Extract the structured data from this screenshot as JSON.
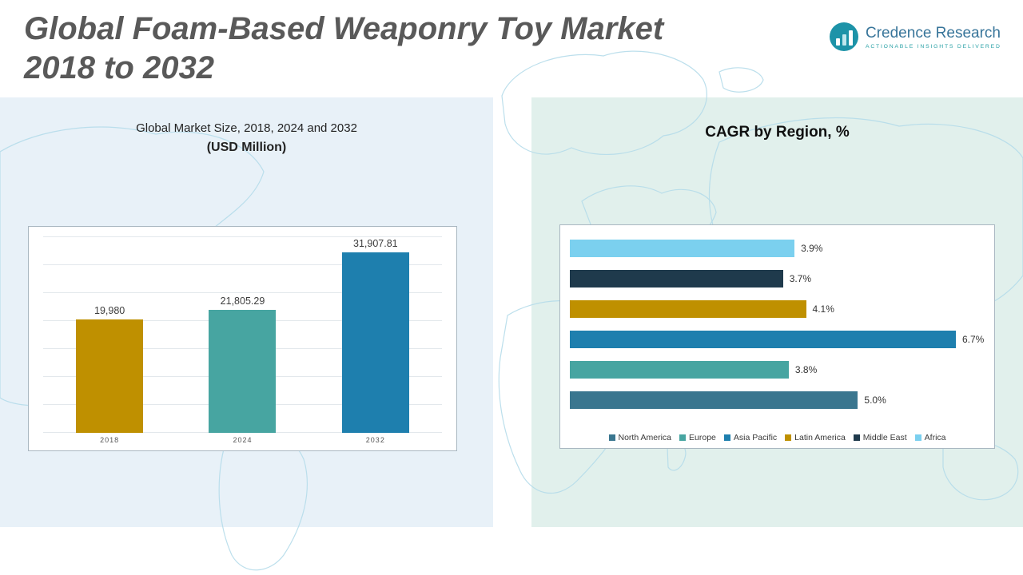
{
  "header": {
    "title_line1": "Global Foam-Based Weaponry Toy Market",
    "title_line2": "2018 to 2032",
    "logo_name": "Credence Research",
    "logo_tagline": "Actionable Insights Delivered"
  },
  "left_panel": {
    "title_line1": "Global Market Size, 2018, 2024 and 2032",
    "title_line2": "(USD Million)"
  },
  "right_panel": {
    "title": "CAGR by Region, %"
  },
  "chart_data": [
    {
      "type": "bar",
      "title": "Global Market Size, 2018, 2024 and 2032 (USD Million)",
      "categories": [
        "2018",
        "2024",
        "2032"
      ],
      "values": [
        19980,
        21805.29,
        31907.81
      ],
      "value_labels": [
        "19,980",
        "21,805.29",
        "31,907.81"
      ],
      "colors": [
        "#bf9000",
        "#47a5a1",
        "#1e7fae"
      ],
      "xlabel": "",
      "ylabel": "USD Million",
      "ylim": [
        0,
        35000
      ],
      "grid": true,
      "legend_position": "none"
    },
    {
      "type": "bar",
      "orientation": "horizontal",
      "title": "CAGR by Region, %",
      "categories": [
        "Africa",
        "Middle East",
        "Latin America",
        "Asia Pacific",
        "Europe",
        "North America"
      ],
      "values": [
        3.9,
        3.7,
        4.1,
        6.7,
        3.8,
        5.0
      ],
      "value_labels": [
        "3.9%",
        "3.7%",
        "4.1%",
        "6.7%",
        "3.8%",
        "5.0%"
      ],
      "colors": [
        "#7bd0ef",
        "#1f3a4c",
        "#bf9000",
        "#1e7fae",
        "#47a5a1",
        "#3a768f"
      ],
      "xlabel": "CAGR %",
      "ylabel": "",
      "xlim": [
        0,
        7.2
      ],
      "grid": false,
      "legend_position": "bottom",
      "legend": [
        "North America",
        "Europe",
        "Asia Pacific",
        "Latin America",
        "Middle East",
        "Africa"
      ],
      "legend_colors": [
        "#3a768f",
        "#47a5a1",
        "#1e7fae",
        "#bf9000",
        "#1f3a4c",
        "#7bd0ef"
      ]
    }
  ]
}
